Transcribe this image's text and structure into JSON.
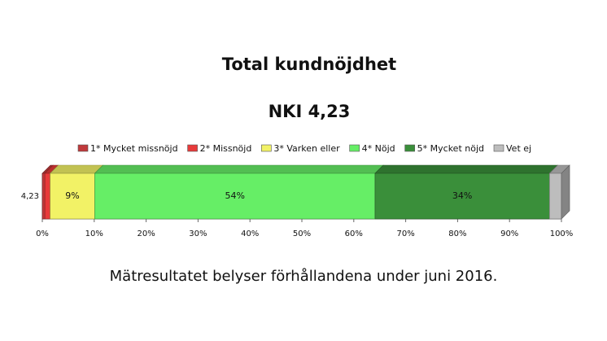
{
  "chart_data": {
    "type": "stacked-bar-horizontal",
    "title": "Total kundnöjdhet",
    "subtitle": "NKI 4,23",
    "categories": [
      "4,23"
    ],
    "series": [
      {
        "name": "1* Mycket missnöjd",
        "color": "#c0393b",
        "values": [
          0.5
        ],
        "value_labels": [
          null
        ]
      },
      {
        "name": "2* Missnöjd",
        "color": "#e83a3a",
        "values": [
          1.0
        ],
        "value_labels": [
          null
        ]
      },
      {
        "name": "3* Varken eller",
        "color": "#f2f266",
        "values": [
          8.6
        ],
        "value_labels": [
          "9%"
        ]
      },
      {
        "name": "4* Nöjd",
        "color": "#66ee66",
        "values": [
          54
        ],
        "value_labels": [
          "54%"
        ]
      },
      {
        "name": "5* Mycket nöjd",
        "color": "#3a8f3a",
        "values": [
          33.6
        ],
        "value_labels": [
          "34%"
        ]
      },
      {
        "name": "Vet ej",
        "color": "#bdbdbd",
        "values": [
          2.3
        ],
        "value_labels": [
          null
        ]
      }
    ],
    "xlim": [
      0,
      100
    ],
    "xticks": [
      {
        "value": 0,
        "label": "0%"
      },
      {
        "value": 10,
        "label": "10%"
      },
      {
        "value": 20,
        "label": "20%"
      },
      {
        "value": 30,
        "label": "30%"
      },
      {
        "value": 40,
        "label": "40%"
      },
      {
        "value": 50,
        "label": "50%"
      },
      {
        "value": 60,
        "label": "60%"
      },
      {
        "value": 70,
        "label": "70%"
      },
      {
        "value": 80,
        "label": "80%"
      },
      {
        "value": 90,
        "label": "90%"
      },
      {
        "value": 100,
        "label": "100%"
      }
    ],
    "grid": true,
    "note": "Mätresultatet belyser förhållandena under juni 2016."
  }
}
